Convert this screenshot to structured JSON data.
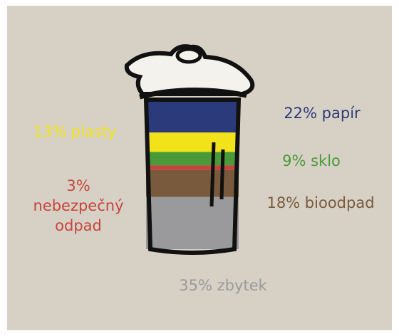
{
  "chart_data": {
    "type": "can-stack",
    "segments": [
      {
        "label": [
          "22% papír"
        ],
        "value": 22,
        "color": "#2b3a7a"
      },
      {
        "label": [
          "13% plasty"
        ],
        "value": 13,
        "color": "#f2e21a"
      },
      {
        "label": [
          "9% sklo"
        ],
        "value": 9,
        "color": "#4a9a3a"
      },
      {
        "label": [
          "3%",
          "nebezpečný",
          "odpad"
        ],
        "value": 3,
        "color": "#c7443e"
      },
      {
        "label": [
          "18% bioodpad"
        ],
        "value": 18,
        "color": "#7a5a3c"
      },
      {
        "label": [
          "35% zbytek"
        ],
        "value": 35,
        "color": "#9a9a9c"
      }
    ]
  }
}
